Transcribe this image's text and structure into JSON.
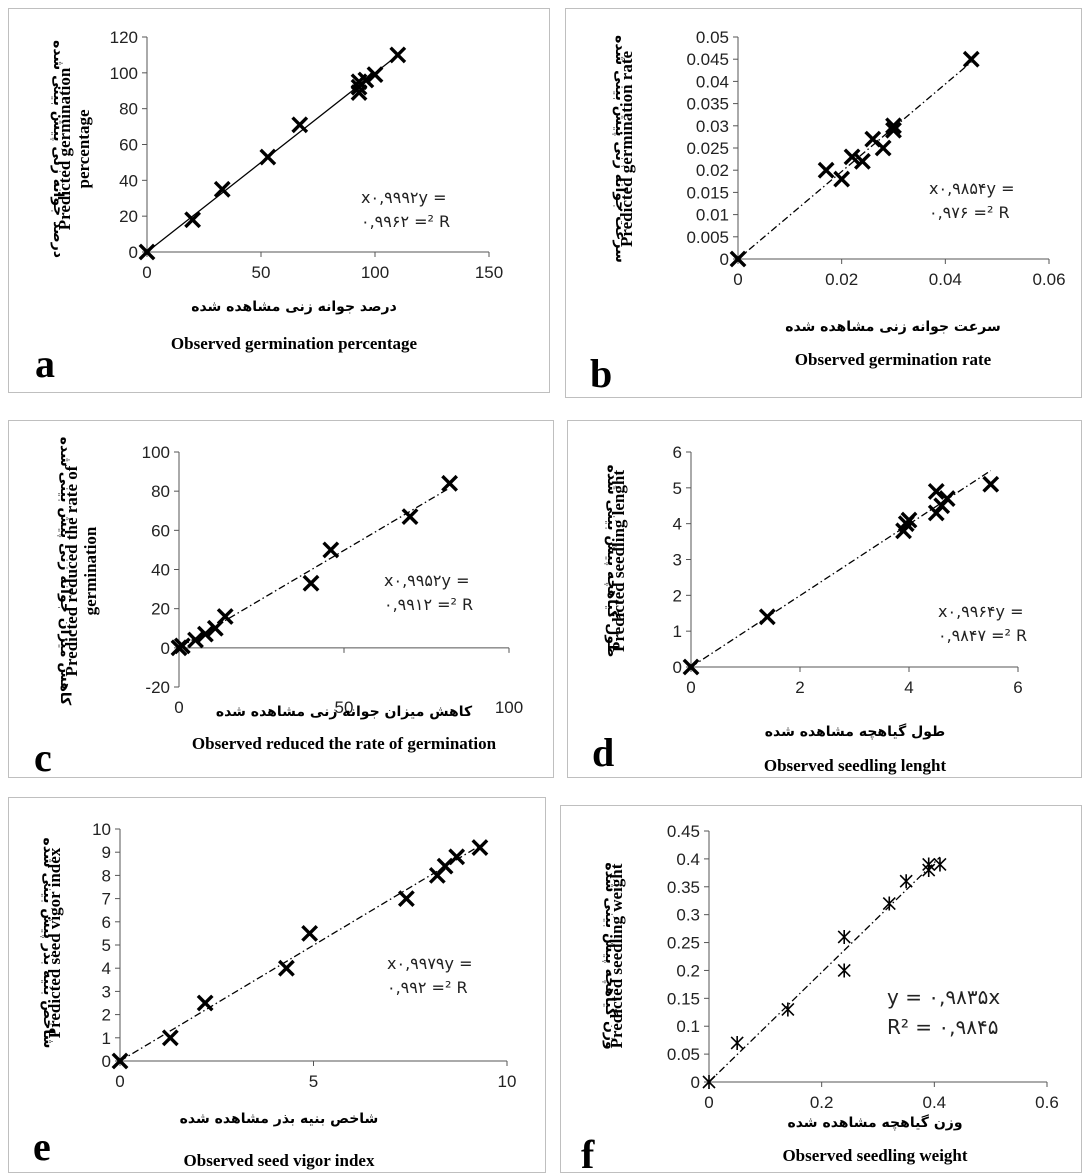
{
  "chart_data": [
    {
      "id": "a",
      "type": "scatter",
      "panel_letter": "a",
      "ylabel_fa": "درصد جوانه زنی پیش بینی شده",
      "ylabel_en": [
        "Predicted germination",
        "percentage"
      ],
      "xlabel_fa": "درصد جوانه زنی مشاهده شده",
      "xlabel_en": "Observed germination percentage",
      "xlim": [
        0,
        150
      ],
      "xticks": [
        "0",
        "50",
        "100",
        "150"
      ],
      "xstep": 50,
      "ylim": [
        0,
        120
      ],
      "yticks": [
        "0",
        "20",
        "40",
        "60",
        "80",
        "100",
        "120"
      ],
      "ystep": 20,
      "trendline": {
        "slope": 0.9992,
        "style": "solid"
      },
      "equation": [
        "x۰,۹۹۹۲y =",
        "۰,۹۹۶۲ =² R"
      ],
      "points": [
        [
          0,
          0
        ],
        [
          20,
          18
        ],
        [
          33,
          35
        ],
        [
          53,
          53
        ],
        [
          67,
          71
        ],
        [
          93,
          89
        ],
        [
          93,
          92
        ],
        [
          93,
          95
        ],
        [
          96,
          96
        ],
        [
          100,
          99
        ],
        [
          110,
          110
        ]
      ]
    },
    {
      "id": "b",
      "type": "scatter",
      "panel_letter": "b",
      "ylabel_fa": "سرعت جوانه زنی پیش بینی شده",
      "ylabel_en": [
        "Predicted germination rate"
      ],
      "xlabel_fa": "سرعت جوانه زنی مشاهده شده",
      "xlabel_en": "Observed germination rate",
      "xlim": [
        0,
        0.06
      ],
      "xticks": [
        "0",
        "0.02",
        "0.04",
        "0.06"
      ],
      "xstep": 0.02,
      "ylim": [
        0,
        0.05
      ],
      "yticks": [
        "0",
        "0.005",
        "0.01",
        "0.015",
        "0.02",
        "0.025",
        "0.03",
        "0.035",
        "0.04",
        "0.045",
        "0.05"
      ],
      "ystep": 0.005,
      "trendline": {
        "slope": 0.9854,
        "style": "dashdot"
      },
      "equation": [
        "x۰,۹۸۵۴y =",
        "۰,۹۷۶ =² R"
      ],
      "points": [
        [
          0,
          0
        ],
        [
          0.017,
          0.02
        ],
        [
          0.02,
          0.018
        ],
        [
          0.022,
          0.023
        ],
        [
          0.024,
          0.022
        ],
        [
          0.026,
          0.027
        ],
        [
          0.028,
          0.025
        ],
        [
          0.03,
          0.029
        ],
        [
          0.03,
          0.03
        ],
        [
          0.045,
          0.045
        ]
      ]
    },
    {
      "id": "c",
      "type": "scatter",
      "panel_letter": "c",
      "ylabel_fa": "کاهش میزان جوانه زنی پیش بینی شده",
      "ylabel_en": [
        "Predicted reduced the rate of",
        "germination"
      ],
      "xlabel_fa": "کاهش میزان جوانه زنی مشاهده شده",
      "xlabel_en": "Observed reduced the rate of germination",
      "xlim": [
        0,
        100
      ],
      "xticks": [
        "0",
        "50",
        "100"
      ],
      "xstep": 50,
      "ylim": [
        -20,
        100
      ],
      "yticks": [
        "-20",
        "0",
        "20",
        "40",
        "60",
        "80",
        "100"
      ],
      "ystep": 20,
      "trendline": {
        "slope": 0.9952,
        "style": "dashdot"
      },
      "equation": [
        "x۰,۹۹۵۲y =",
        "۰,۹۹۱۲ =² R"
      ],
      "points": [
        [
          0,
          0
        ],
        [
          1,
          1
        ],
        [
          5,
          4
        ],
        [
          8,
          7
        ],
        [
          11,
          10
        ],
        [
          14,
          16
        ],
        [
          40,
          33
        ],
        [
          46,
          50
        ],
        [
          70,
          67
        ],
        [
          82,
          84
        ]
      ]
    },
    {
      "id": "d",
      "type": "scatter",
      "panel_letter": "d",
      "ylabel_fa": "طول گیاهچه پیش بینی شده",
      "ylabel_en": [
        "Predicted seedling lenght"
      ],
      "xlabel_fa": "طول گیاهچه مشاهده شده",
      "xlabel_en": "Observed seedling lenght",
      "xlim": [
        0,
        6
      ],
      "xticks": [
        "0",
        "2",
        "4",
        "6"
      ],
      "xstep": 2,
      "ylim": [
        0,
        6
      ],
      "yticks": [
        "0",
        "1",
        "2",
        "3",
        "4",
        "5",
        "6"
      ],
      "ystep": 1,
      "trendline": {
        "slope": 0.9964,
        "style": "dashdot"
      },
      "equation": [
        "x۰,۹۹۶۴y =",
        "۰,۹۸۴۷ =² R"
      ],
      "points": [
        [
          0,
          0
        ],
        [
          1.4,
          1.4
        ],
        [
          3.9,
          3.8
        ],
        [
          3.95,
          4
        ],
        [
          4,
          4.1
        ],
        [
          4.5,
          4.3
        ],
        [
          4.5,
          4.9
        ],
        [
          4.6,
          4.5
        ],
        [
          4.7,
          4.7
        ],
        [
          5.5,
          5.1
        ]
      ]
    },
    {
      "id": "e",
      "type": "scatter",
      "panel_letter": "e",
      "ylabel_fa": "شاخص بنیه بذر پیش بینی شده",
      "ylabel_en": [
        "Predicted seed vigor index"
      ],
      "xlabel_fa": "شاخص بنیه بذر مشاهده شده",
      "xlabel_en": "Observed seed vigor index",
      "xlim": [
        0,
        10
      ],
      "xticks": [
        "0",
        "5",
        "10"
      ],
      "xstep": 5,
      "ylim": [
        0,
        10
      ],
      "yticks": [
        "0",
        "1",
        "2",
        "3",
        "4",
        "5",
        "6",
        "7",
        "8",
        "9",
        "10"
      ],
      "ystep": 1,
      "trendline": {
        "slope": 0.9979,
        "style": "dashdot"
      },
      "equation": [
        "x۰,۹۹۷۹y =",
        "۰,۹۹۲ =² R"
      ],
      "points": [
        [
          0,
          0
        ],
        [
          1.3,
          1
        ],
        [
          2.2,
          2.5
        ],
        [
          4.3,
          4
        ],
        [
          4.9,
          5.5
        ],
        [
          7.4,
          7
        ],
        [
          8.2,
          8
        ],
        [
          8.4,
          8.4
        ],
        [
          8.7,
          8.8
        ],
        [
          9.3,
          9.2
        ]
      ]
    },
    {
      "id": "f",
      "type": "scatter",
      "panel_letter": "f",
      "ylabel_fa": "وزن گیاهچه پیش بینی شده",
      "ylabel_en": [
        "Predicted seedling weight"
      ],
      "xlabel_fa": "وزن گیاهچه مشاهده شده",
      "xlabel_en": "Observed seedling weight",
      "xlim": [
        0,
        0.6
      ],
      "xticks": [
        "0",
        "0.2",
        "0.4",
        "0.6"
      ],
      "xstep": 0.2,
      "ylim": [
        0,
        0.45
      ],
      "yticks": [
        "0",
        "0.05",
        "0.1",
        "0.15",
        "0.2",
        "0.25",
        "0.3",
        "0.35",
        "0.4",
        "0.45"
      ],
      "ystep": 0.05,
      "trendline": {
        "slope": 0.9835,
        "style": "dashdot"
      },
      "equation": [
        "y = ۰,۹۸۳۵x",
        "R² = ۰,۹۸۴۵"
      ],
      "equation_large": true,
      "marker": "star",
      "points": [
        [
          0,
          0
        ],
        [
          0.05,
          0.07
        ],
        [
          0.14,
          0.13
        ],
        [
          0.24,
          0.2
        ],
        [
          0.24,
          0.26
        ],
        [
          0.32,
          0.32
        ],
        [
          0.35,
          0.36
        ],
        [
          0.39,
          0.38
        ],
        [
          0.39,
          0.39
        ],
        [
          0.41,
          0.39
        ]
      ]
    }
  ]
}
